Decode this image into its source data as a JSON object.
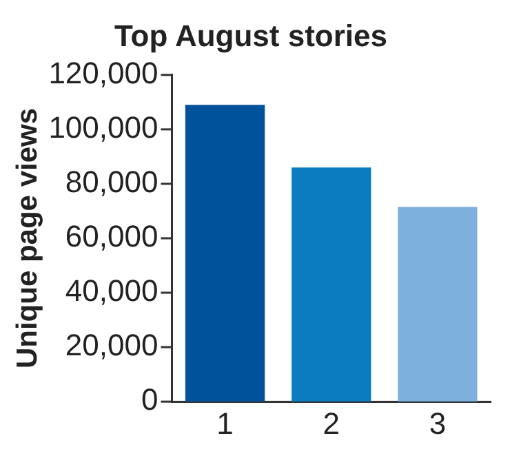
{
  "chart_data": {
    "type": "bar",
    "title": "Top August stories",
    "ylabel": "Unique page views",
    "categories": [
      "1",
      "2",
      "3"
    ],
    "values": [
      109000,
      86000,
      71500
    ],
    "colors": [
      "#00539a",
      "#0a7cbf",
      "#7eb0de"
    ],
    "ylim": [
      0,
      120000
    ],
    "yticks": [
      0,
      {
        "value": 20000,
        "label": "20,000"
      },
      {
        "value": 40000,
        "label": "40,000"
      },
      {
        "value": 60000,
        "label": "60,000"
      },
      {
        "value": 80000,
        "label": "80,000"
      },
      {
        "value": 100000,
        "label": "100,000"
      },
      {
        "value": 120000,
        "label": "120,000"
      }
    ],
    "grid": false,
    "legend": false
  }
}
